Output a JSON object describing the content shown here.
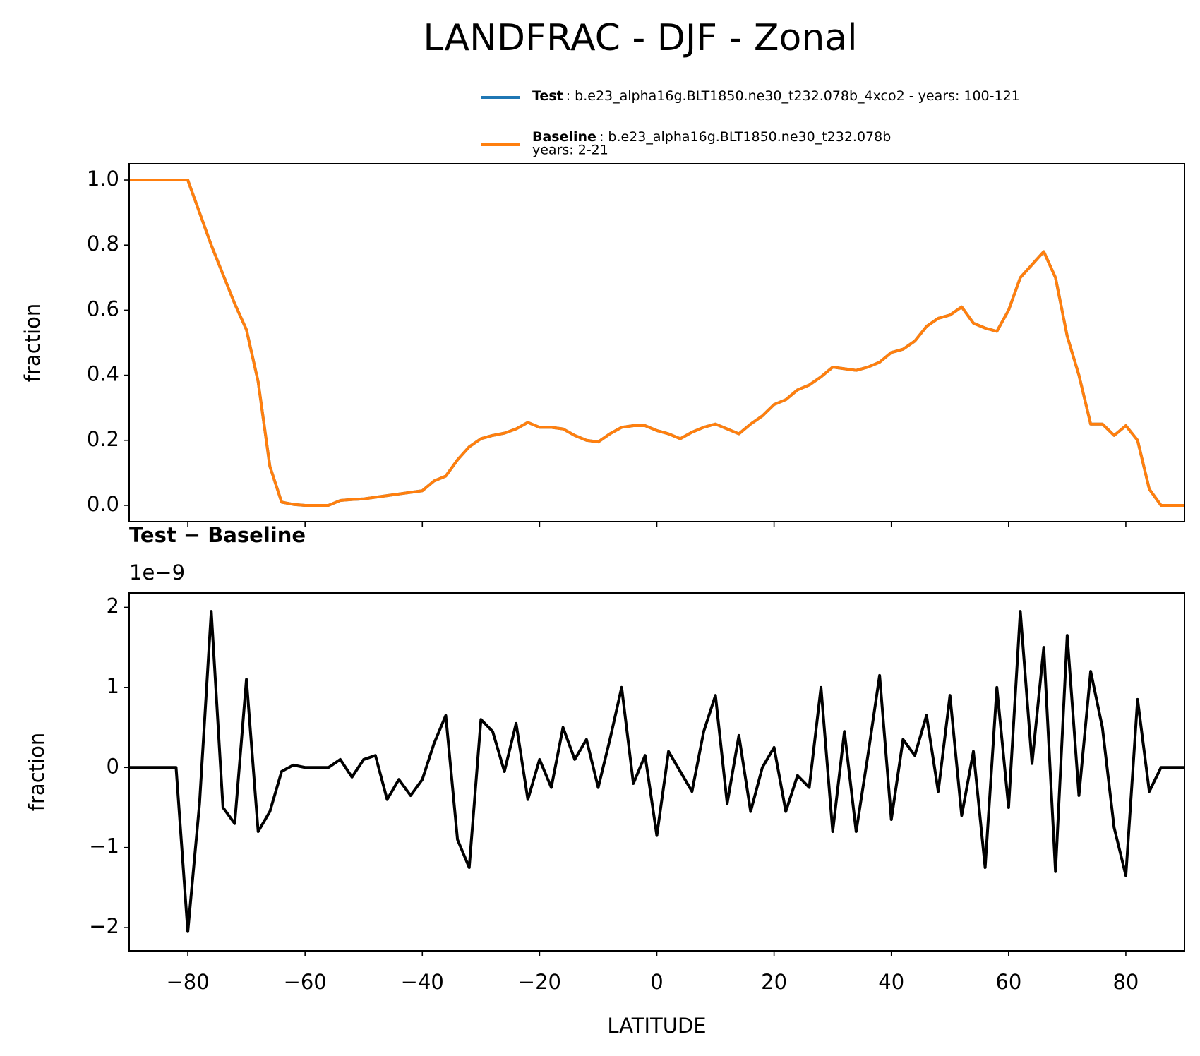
{
  "title": "LANDFRAC - DJF - Zonal",
  "chart_data": [
    {
      "type": "line",
      "ylabel": "fraction",
      "x": [
        -90,
        -88,
        -86,
        -84,
        -82,
        -80,
        -78,
        -76,
        -74,
        -72,
        -70,
        -68,
        -66,
        -64,
        -62,
        -60,
        -58,
        -56,
        -54,
        -52,
        -50,
        -48,
        -46,
        -44,
        -42,
        -40,
        -38,
        -36,
        -34,
        -32,
        -30,
        -28,
        -26,
        -24,
        -22,
        -20,
        -18,
        -16,
        -14,
        -12,
        -10,
        -8,
        -6,
        -4,
        -2,
        0,
        2,
        4,
        6,
        8,
        10,
        12,
        14,
        16,
        18,
        20,
        22,
        24,
        26,
        28,
        30,
        32,
        34,
        36,
        38,
        40,
        42,
        44,
        46,
        48,
        50,
        52,
        54,
        56,
        58,
        60,
        62,
        64,
        66,
        68,
        70,
        72,
        74,
        76,
        78,
        80,
        82,
        84,
        86,
        88,
        90
      ],
      "series": [
        {
          "name": "Test",
          "legend_text": [
            ": b.e23_alpha16g.BLT1850.ne30_t232.078b_4xco2 - years: 100-121"
          ],
          "color": "#1f77b4",
          "values": [
            1.0,
            1.0,
            1.0,
            1.0,
            1.0,
            1.0,
            0.9,
            0.8,
            0.71,
            0.62,
            0.54,
            0.38,
            0.12,
            0.01,
            0.003,
            0,
            0,
            0,
            0.015,
            0.018,
            0.02,
            0.025,
            0.03,
            0.035,
            0.04,
            0.045,
            0.075,
            0.09,
            0.14,
            0.18,
            0.205,
            0.215,
            0.222,
            0.235,
            0.255,
            0.24,
            0.24,
            0.235,
            0.215,
            0.2,
            0.195,
            0.22,
            0.24,
            0.245,
            0.245,
            0.23,
            0.22,
            0.205,
            0.225,
            0.24,
            0.25,
            0.235,
            0.22,
            0.25,
            0.275,
            0.31,
            0.325,
            0.355,
            0.37,
            0.395,
            0.425,
            0.42,
            0.415,
            0.425,
            0.44,
            0.47,
            0.48,
            0.505,
            0.55,
            0.575,
            0.585,
            0.61,
            0.56,
            0.545,
            0.535,
            0.6,
            0.7,
            0.74,
            0.78,
            0.7,
            0.52,
            0.4,
            0.25,
            0.25,
            0.215,
            0.245,
            0.2,
            0.05,
            0,
            0,
            0
          ]
        },
        {
          "name": "Baseline",
          "legend_text": [
            ": b.e23_alpha16g.BLT1850.ne30_t232.078b",
            "years: 2-21"
          ],
          "color": "#ff7f0e",
          "values": [
            1.0,
            1.0,
            1.0,
            1.0,
            1.0,
            1.0,
            0.9,
            0.8,
            0.71,
            0.62,
            0.54,
            0.38,
            0.12,
            0.01,
            0.003,
            0,
            0,
            0,
            0.015,
            0.018,
            0.02,
            0.025,
            0.03,
            0.035,
            0.04,
            0.045,
            0.075,
            0.09,
            0.14,
            0.18,
            0.205,
            0.215,
            0.222,
            0.235,
            0.255,
            0.24,
            0.24,
            0.235,
            0.215,
            0.2,
            0.195,
            0.22,
            0.24,
            0.245,
            0.245,
            0.23,
            0.22,
            0.205,
            0.225,
            0.24,
            0.25,
            0.235,
            0.22,
            0.25,
            0.275,
            0.31,
            0.325,
            0.355,
            0.37,
            0.395,
            0.425,
            0.42,
            0.415,
            0.425,
            0.44,
            0.47,
            0.48,
            0.505,
            0.55,
            0.575,
            0.585,
            0.61,
            0.56,
            0.545,
            0.535,
            0.6,
            0.7,
            0.74,
            0.78,
            0.7,
            0.52,
            0.4,
            0.25,
            0.25,
            0.215,
            0.245,
            0.2,
            0.05,
            0,
            0,
            0
          ]
        }
      ],
      "xlim": [
        -90,
        90
      ],
      "xticks": [
        -80,
        -60,
        -40,
        -20,
        0,
        20,
        40,
        60,
        80
      ],
      "ylim": [
        -0.05,
        1.05
      ],
      "yticks": [
        {
          "value": 0,
          "label": "0.0"
        },
        {
          "value": 0.2,
          "label": "0.2"
        },
        {
          "value": 0.4,
          "label": "0.4"
        },
        {
          "value": 0.6,
          "label": "0.6"
        },
        {
          "value": 0.8,
          "label": "0.8"
        },
        {
          "value": 1,
          "label": "1.0"
        }
      ]
    },
    {
      "type": "line",
      "title": "Test − Baseline",
      "offset_label": "1e−9",
      "ylabel": "fraction",
      "xlabel": "LATITUDE",
      "x": [
        -90,
        -88,
        -86,
        -84,
        -82,
        -80,
        -78,
        -76,
        -74,
        -72,
        -70,
        -68,
        -66,
        -64,
        -62,
        -60,
        -58,
        -56,
        -54,
        -52,
        -50,
        -48,
        -46,
        -44,
        -42,
        -40,
        -38,
        -36,
        -34,
        -32,
        -30,
        -28,
        -26,
        -24,
        -22,
        -20,
        -18,
        -16,
        -14,
        -12,
        -10,
        -8,
        -6,
        -4,
        -2,
        0,
        2,
        4,
        6,
        8,
        10,
        12,
        14,
        16,
        18,
        20,
        22,
        24,
        26,
        28,
        30,
        32,
        34,
        36,
        38,
        40,
        42,
        44,
        46,
        48,
        50,
        52,
        54,
        56,
        58,
        60,
        62,
        64,
        66,
        68,
        70,
        72,
        74,
        76,
        78,
        80,
        82,
        84,
        86,
        88,
        90
      ],
      "series": [
        {
          "color": "#000000",
          "values": [
            0,
            0,
            0,
            0,
            0,
            -2.05,
            -0.45,
            1.95,
            -0.5,
            -0.7,
            1.1,
            -0.8,
            -0.55,
            -0.05,
            0.03,
            0,
            0,
            0,
            0.1,
            -0.12,
            0.1,
            0.15,
            -0.4,
            -0.15,
            -0.35,
            -0.15,
            0.3,
            0.65,
            -0.9,
            -1.25,
            0.6,
            0.45,
            -0.05,
            0.55,
            -0.4,
            0.1,
            -0.25,
            0.5,
            0.1,
            0.35,
            -0.25,
            0.35,
            1.0,
            -0.2,
            0.15,
            -0.85,
            0.2,
            -0.05,
            -0.3,
            0.45,
            0.9,
            -0.45,
            0.4,
            -0.55,
            0.0,
            0.25,
            -0.55,
            -0.1,
            -0.25,
            1.0,
            -0.8,
            0.45,
            -0.8,
            0.15,
            1.15,
            -0.65,
            0.35,
            0.15,
            0.65,
            -0.3,
            0.9,
            -0.6,
            0.2,
            -1.25,
            1.0,
            -0.5,
            1.95,
            0.05,
            1.5,
            -1.3,
            1.65,
            -0.35,
            1.2,
            0.5,
            -0.75,
            -1.35,
            0.85,
            -0.3,
            0,
            0,
            0
          ]
        }
      ],
      "xlim": [
        -90,
        90
      ],
      "xticks": [
        {
          "value": -80,
          "label": "−80"
        },
        {
          "value": -60,
          "label": "−60"
        },
        {
          "value": -40,
          "label": "−40"
        },
        {
          "value": -20,
          "label": "−20"
        },
        0,
        20,
        40,
        60,
        80
      ],
      "ylim": [
        -2.29,
        2.18
      ],
      "yticks": [
        {
          "value": -2,
          "label": "−2"
        },
        {
          "value": -1,
          "label": "−1"
        },
        0,
        1,
        2
      ]
    }
  ]
}
